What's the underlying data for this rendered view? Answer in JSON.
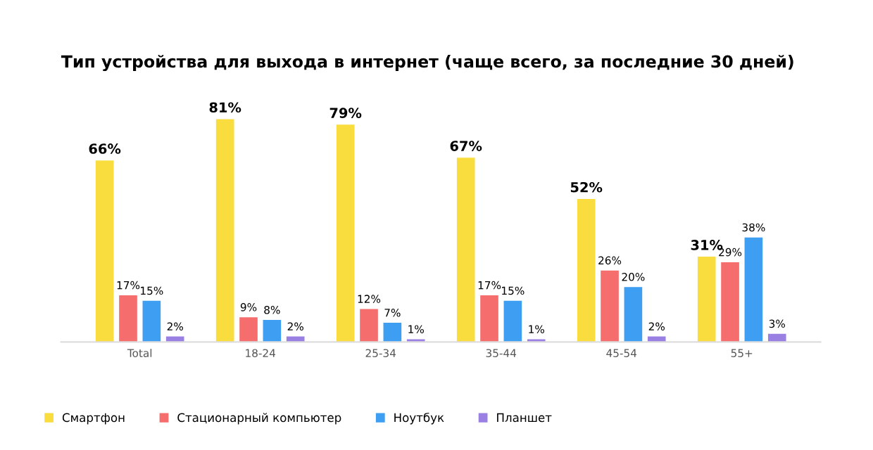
{
  "chart_data": {
    "type": "bar",
    "title": "Тип устройства для выхода в интернет (чаще всего, за последние 30 дней)",
    "categories": [
      "Total",
      "18-24",
      "25-34",
      "35-44",
      "45-54",
      "55+"
    ],
    "series": [
      {
        "name": "Смартфон",
        "color": "#f9dc3e",
        "values": [
          66,
          81,
          79,
          67,
          52,
          31
        ],
        "value_labels": [
          "66%",
          "81%",
          "79%",
          "67%",
          "52%",
          "31%"
        ]
      },
      {
        "name": "Стационарный компьютер",
        "color": "#f56d6d",
        "values": [
          17,
          9,
          12,
          17,
          26,
          29
        ],
        "value_labels": [
          "17%",
          "9%",
          "12%",
          "17%",
          "26%",
          "29%"
        ]
      },
      {
        "name": "Ноутбук",
        "color": "#3d9ef2",
        "values": [
          15,
          8,
          7,
          15,
          20,
          38
        ],
        "value_labels": [
          "15%",
          "8%",
          "7%",
          "15%",
          "20%",
          "38%"
        ]
      },
      {
        "name": "Планшет",
        "color": "#9b80e3",
        "values": [
          2,
          2,
          1,
          1,
          2,
          3
        ],
        "value_labels": [
          "2%",
          "2%",
          "1%",
          "1%",
          "2%",
          "3%"
        ]
      }
    ],
    "legend": "bottom left",
    "grid": false
  }
}
